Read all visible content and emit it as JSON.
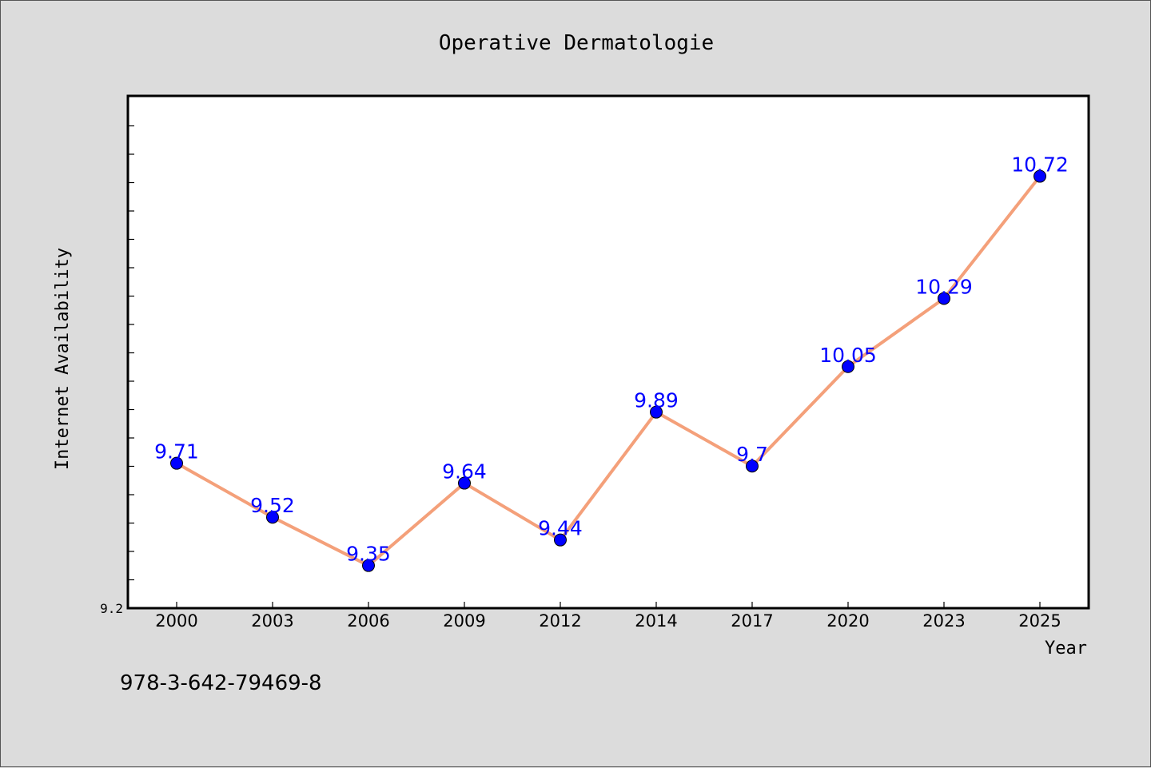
{
  "chart_data": {
    "type": "line",
    "title": "Operative Dermatologie",
    "xlabel": "Year",
    "ylabel": "Internet Availability",
    "categories": [
      "2000",
      "2003",
      "2006",
      "2009",
      "2012",
      "2014",
      "2017",
      "2020",
      "2023",
      "2025"
    ],
    "series": [
      {
        "values": [
          9.71,
          9.52,
          9.35,
          9.64,
          9.44,
          9.89,
          9.7,
          10.05,
          10.29,
          10.72
        ],
        "line_color": "#f4a07a",
        "marker_color": "#0000ff"
      }
    ],
    "data_labels": [
      "9.71",
      "9.52",
      "9.35",
      "9.64",
      "9.44",
      "9.89",
      "9.7",
      "10.05",
      "10.29",
      "10.72"
    ],
    "y_tick_labels": [
      "9.2"
    ],
    "ylim": [
      9.2,
      11.0
    ],
    "grid": false,
    "legend": "none"
  },
  "footer": {
    "isbn": "978-3-642-79469-8"
  },
  "colors": {
    "background": "#dcdcdc",
    "plot_background": "#ffffff"
  }
}
